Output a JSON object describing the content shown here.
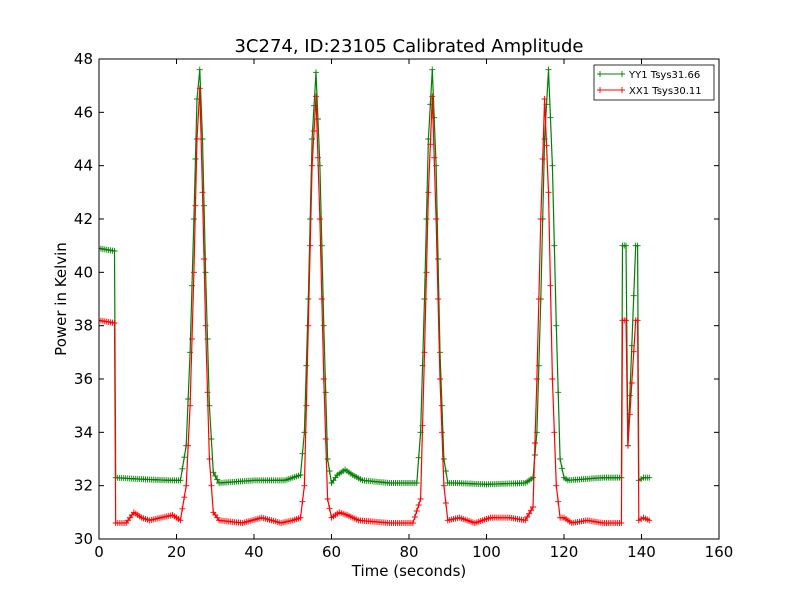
{
  "chart_data": {
    "type": "line",
    "title": "3C274, ID:23105 Calibrated Amplitude",
    "xlabel": "Time (seconds)",
    "ylabel": "Power in Kelvin",
    "xlim": [
      0,
      160
    ],
    "ylim": [
      30,
      48
    ],
    "xticks": [
      "0",
      "20",
      "40",
      "60",
      "80",
      "100",
      "120",
      "140",
      "160"
    ],
    "yticks": [
      "30",
      "32",
      "34",
      "36",
      "38",
      "40",
      "42",
      "44",
      "46",
      "48"
    ],
    "grid": false,
    "legend_position": "top-right",
    "series": [
      {
        "name": "YY1 Tsys31.66",
        "color": "#008000",
        "x": [
          0,
          4,
          4.3,
          10,
          18,
          21,
          22.5,
          23.5,
          24.5,
          25.3,
          26,
          26.7,
          27.5,
          28.5,
          29.5,
          31,
          40,
          48,
          52,
          53,
          54,
          55,
          56,
          57,
          58,
          59,
          60,
          61.5,
          63.5,
          65.5,
          68,
          75,
          82,
          83,
          84,
          85,
          86,
          87,
          88,
          89,
          90,
          92,
          100,
          110,
          112,
          113,
          114,
          115,
          116,
          117,
          118,
          119,
          120,
          121,
          130,
          134.8,
          135.1,
          136,
          136.5,
          138.5,
          139,
          139.3,
          140.5,
          142
        ],
        "y": [
          40.9,
          40.8,
          32.3,
          32.25,
          32.2,
          32.2,
          33.5,
          37,
          42,
          46.5,
          47.6,
          45,
          40,
          35,
          32.5,
          32.1,
          32.2,
          32.2,
          32.4,
          34,
          39,
          45,
          47.5,
          44,
          38,
          33,
          32.1,
          32.4,
          32.6,
          32.4,
          32.2,
          32.1,
          32.1,
          34,
          39,
          45,
          47.6,
          44,
          37,
          33,
          32.1,
          32.1,
          32.05,
          32.1,
          32.3,
          34,
          39,
          45,
          47.6,
          44,
          38,
          33,
          32.3,
          32.2,
          32.3,
          32.3,
          41,
          41,
          33.5,
          41,
          41,
          32.2,
          32.3,
          32.3
        ]
      },
      {
        "name": "XX1 Tsys30.11",
        "color": "#ff0000",
        "x": [
          0,
          4,
          4.3,
          7,
          9,
          11,
          13,
          16,
          19,
          21,
          22.5,
          23.5,
          24.5,
          25.3,
          26,
          26.7,
          27.5,
          28.5,
          29.5,
          31,
          37,
          42,
          47,
          50,
          52,
          53,
          54,
          55,
          56,
          57,
          58,
          59,
          60,
          62,
          64,
          67,
          75,
          81,
          83,
          84,
          85,
          86,
          87,
          88,
          89,
          90,
          93,
          97,
          101,
          106,
          110,
          112,
          113,
          114,
          115,
          116,
          117,
          118,
          119,
          120,
          122,
          126,
          130,
          134.8,
          135.1,
          136,
          136.5,
          138.5,
          139,
          139.3,
          140.5,
          142
        ],
        "y": [
          38.2,
          38.1,
          30.6,
          30.6,
          31.0,
          30.8,
          30.7,
          30.8,
          30.9,
          30.7,
          32,
          35,
          40,
          45,
          46.9,
          43,
          38,
          33,
          31,
          30.7,
          30.6,
          30.8,
          30.6,
          30.7,
          30.8,
          32,
          38,
          44,
          46.6,
          42,
          36,
          31.5,
          30.8,
          31.0,
          30.9,
          30.7,
          30.6,
          30.6,
          31.5,
          37,
          43,
          46.6,
          42,
          36,
          32,
          30.7,
          30.8,
          30.6,
          30.8,
          30.8,
          30.7,
          31.2,
          36,
          42,
          46.5,
          43,
          36,
          32,
          30.8,
          30.8,
          30.6,
          30.7,
          30.6,
          30.6,
          38.2,
          38.2,
          33.5,
          38.2,
          38.2,
          30.7,
          30.8,
          30.7
        ]
      }
    ]
  }
}
